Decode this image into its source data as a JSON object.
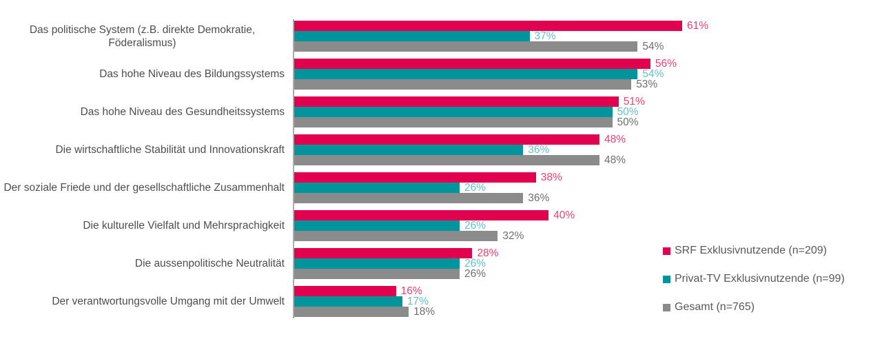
{
  "chart_data": {
    "type": "bar",
    "orientation": "horizontal",
    "title": "",
    "xlabel": "",
    "ylabel": "",
    "xlim": [
      0,
      100
    ],
    "grid": false,
    "legend_position": "right",
    "value_suffix": "%",
    "categories": [
      "Das politische System (z.B. direkte Demokratie, Föderalismus)",
      "Das hohe Niveau des Bildungssystems",
      "Das hohe Niveau des Gesundheitssystems",
      "Die wirtschaftliche Stabilität und Innovationskraft",
      "Der soziale Friede und der gesellschaftliche Zusammenhalt",
      "Die kulturelle Vielfalt und Mehrsprachigkeit",
      "Die aussenpolitische Neutralität",
      "Der verantwortungsvolle Umgang mit der Umwelt"
    ],
    "series": [
      {
        "key": "srf",
        "name": "SRF Exklusivnutzende (n=209)",
        "color": "#e2014e",
        "label_color": "#ef3d71",
        "values": [
          61,
          56,
          51,
          48,
          38,
          40,
          28,
          16
        ]
      },
      {
        "key": "privat-tv",
        "name": "Privat-TV Exklusivnutzende (n=99)",
        "color": "#00949d",
        "label_color": "#5fc1c7",
        "values": [
          37,
          54,
          50,
          36,
          26,
          26,
          26,
          17
        ]
      },
      {
        "key": "gesamt",
        "name": "Gesamt (n=765)",
        "color": "#8b8b8b",
        "label_color": "#6e6e6e",
        "values": [
          54,
          53,
          50,
          48,
          36,
          32,
          26,
          18
        ]
      }
    ]
  }
}
